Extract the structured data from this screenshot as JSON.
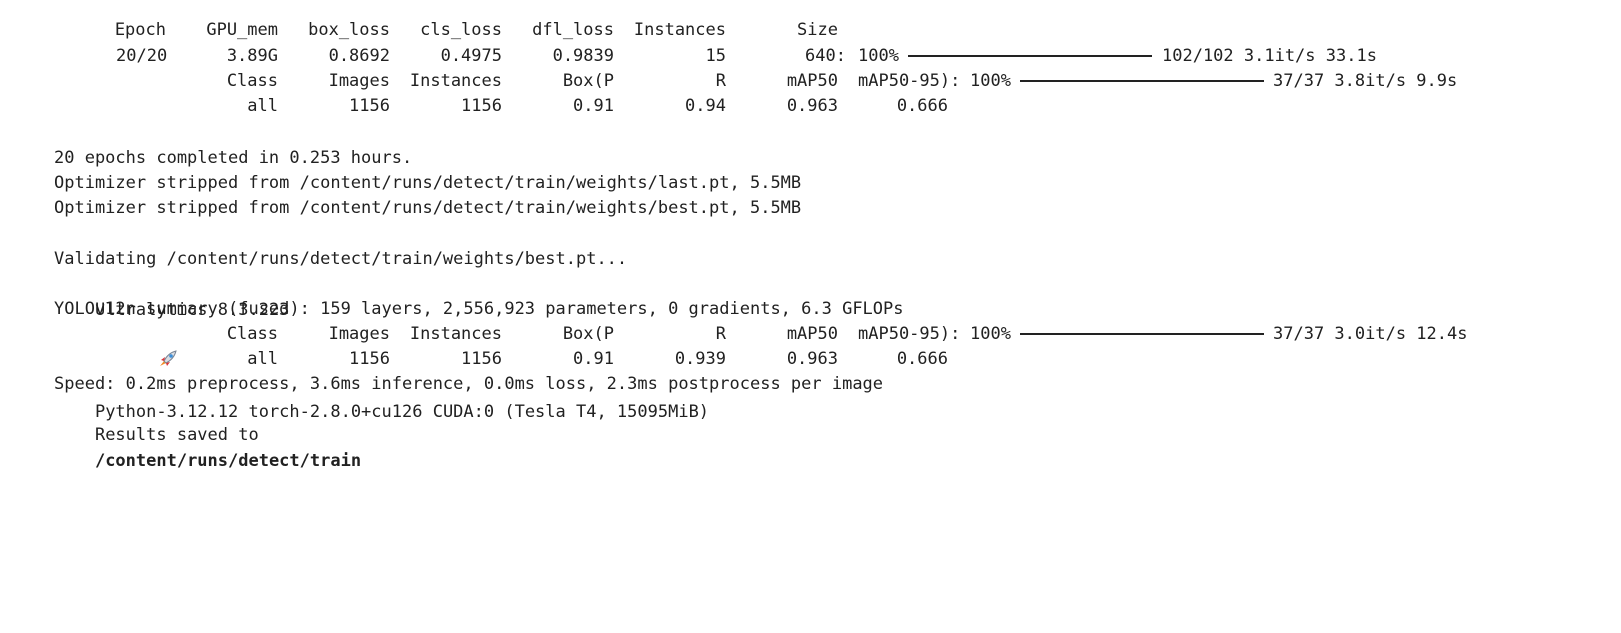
{
  "train_header": {
    "epoch": "Epoch",
    "gpu_mem": "GPU_mem",
    "box_loss": "box_loss",
    "cls_loss": "cls_loss",
    "dfl_loss": "dfl_loss",
    "instances": "Instances",
    "size": "Size"
  },
  "train_row": {
    "epoch": "20/20",
    "gpu_mem": "3.89G",
    "box_loss": "0.8692",
    "cls_loss": "0.4975",
    "dfl_loss": "0.9839",
    "instances": "15",
    "size": "640:",
    "percent": "100%",
    "progress": 1.0,
    "stats": "102/102 3.1it/s 33.1s"
  },
  "val_header": {
    "class": "Class",
    "images": "Images",
    "instances": "Instances",
    "box_p": "Box(P",
    "r": "R",
    "map50": "mAP50",
    "map50_95": "mAP50-95):",
    "percent": "100%",
    "progress": 1.0,
    "stats": "37/37 3.8it/s 9.9s"
  },
  "val_row": {
    "class": "all",
    "images": "1156",
    "instances": "1156",
    "box_p": "0.91",
    "r": "0.94",
    "map50": "0.963",
    "map50_95": "0.666"
  },
  "messages": {
    "completed": "20 epochs completed in 0.253 hours.",
    "stripped_last": "Optimizer stripped from /content/runs/detect/train/weights/last.pt, 5.5MB",
    "stripped_best": "Optimizer stripped from /content/runs/detect/train/weights/best.pt, 5.5MB",
    "validating": "Validating /content/runs/detect/train/weights/best.pt...",
    "ultra_prefix": "Ultralytics 8.3.223",
    "ultra_icon": "rocket-icon",
    "ultra_suffix": "Python-3.12.12 torch-2.8.0+cu126 CUDA:0 (Tesla T4, 15095MiB)",
    "summary": "YOLOv12n summary (fused): 159 layers, 2,556,923 parameters, 0 gradients, 6.3 GFLOPs",
    "speed": "Speed: 0.2ms preprocess, 3.6ms inference, 0.0ms loss, 2.3ms postprocess per image",
    "results_prefix": "Results saved to",
    "results_path": "/content/runs/detect/train"
  },
  "val2_header": {
    "class": "Class",
    "images": "Images",
    "instances": "Instances",
    "box_p": "Box(P",
    "r": "R",
    "map50": "mAP50",
    "map50_95": "mAP50-95):",
    "percent": "100%",
    "progress": 1.0,
    "stats": "37/37 3.0it/s 12.4s"
  },
  "val2_row": {
    "class": "all",
    "images": "1156",
    "instances": "1156",
    "box_p": "0.91",
    "r": "0.939",
    "map50": "0.963",
    "map50_95": "0.666"
  }
}
